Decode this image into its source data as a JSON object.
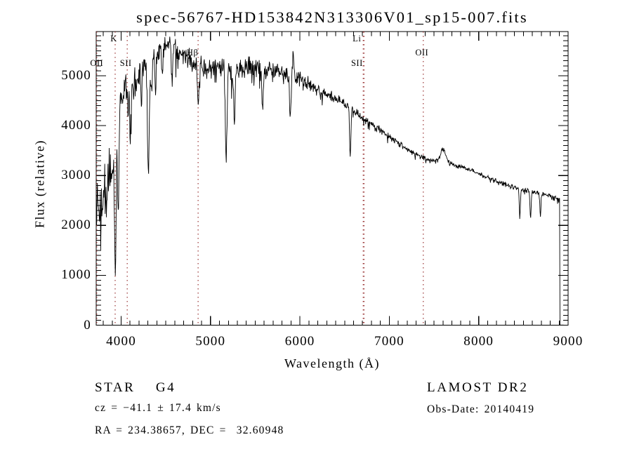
{
  "title": "spec-56767-HD153842N313306V01_sp15-007.fits",
  "annotations": {
    "class_line": "STAR    G4",
    "survey": "LAMOST DR2",
    "cz_line": "cz = −41.1 ± 17.4 km/s",
    "obs_date_line": "Obs-Date: 20140419",
    "radec_line": "RA = 234.38657, DEC =  32.60948"
  },
  "chart_data": {
    "type": "line",
    "title": "spec-56767-HD153842N313306V01_sp15-007.fits",
    "xlabel": "Wavelength (Å)",
    "ylabel": "Flux (relative)",
    "xlim": [
      3721,
      9000
    ],
    "ylim": [
      0,
      5886
    ],
    "x_ticks": [
      4000,
      5000,
      6000,
      7000,
      8000,
      9000
    ],
    "y_ticks": [
      0,
      1000,
      2000,
      3000,
      4000,
      5000
    ],
    "x_minor_step": 100,
    "y_minor_step": 100,
    "grid": false,
    "legend": false,
    "colors": {
      "spectrum": "#000000",
      "line_marker": "#993333",
      "axis": "#000000",
      "background": "#ffffff"
    },
    "spectral_lines": [
      {
        "label": "OII",
        "wavelength": 3727,
        "row": "low",
        "dx": 0
      },
      {
        "label": "K",
        "wavelength": 3933,
        "row": "high",
        "dx": -2
      },
      {
        "label": "SII",
        "wavelength": 4068,
        "row": "low",
        "dx": -2
      },
      {
        "label": "Hβ",
        "wavelength": 4861,
        "row": "mid",
        "dx": -8
      },
      {
        "label": "Li",
        "wavelength": 6708,
        "row": "high",
        "dx": -9
      },
      {
        "label": "SII",
        "wavelength": 6717,
        "row": "low",
        "dx": -10
      },
      {
        "label": "OII",
        "wavelength": 7380,
        "row": "mid",
        "dx": -2
      }
    ],
    "noise_seed": 73,
    "cutoff_wavelength": 8905,
    "continuum": [
      [
        3721,
        2450
      ],
      [
        3760,
        2350
      ],
      [
        3800,
        2500
      ],
      [
        3850,
        2750
      ],
      [
        3900,
        3200
      ],
      [
        3935,
        3600
      ],
      [
        3980,
        4350
      ],
      [
        4030,
        4750
      ],
      [
        4090,
        4750
      ],
      [
        4150,
        4850
      ],
      [
        4250,
        5150
      ],
      [
        4350,
        5450
      ],
      [
        4450,
        5600
      ],
      [
        4550,
        5620
      ],
      [
        4650,
        5470
      ],
      [
        4750,
        5330
      ],
      [
        4850,
        5280
      ],
      [
        4950,
        5180
      ],
      [
        5050,
        5160
      ],
      [
        5150,
        5230
      ],
      [
        5250,
        5080
      ],
      [
        5350,
        5120
      ],
      [
        5450,
        5170
      ],
      [
        5550,
        5120
      ],
      [
        5650,
        5120
      ],
      [
        5750,
        5070
      ],
      [
        5850,
        5020
      ],
      [
        5950,
        5020
      ],
      [
        6050,
        4900
      ],
      [
        6150,
        4780
      ],
      [
        6250,
        4680
      ],
      [
        6350,
        4580
      ],
      [
        6450,
        4480
      ],
      [
        6550,
        4400
      ],
      [
        6650,
        4230
      ],
      [
        6750,
        4100
      ],
      [
        6850,
        3980
      ],
      [
        6950,
        3850
      ],
      [
        7050,
        3720
      ],
      [
        7150,
        3600
      ],
      [
        7250,
        3470
      ],
      [
        7350,
        3380
      ],
      [
        7450,
        3310
      ],
      [
        7550,
        3280
      ],
      [
        7650,
        3260
      ],
      [
        7750,
        3210
      ],
      [
        7850,
        3150
      ],
      [
        7950,
        3070
      ],
      [
        8050,
        3000
      ],
      [
        8150,
        2920
      ],
      [
        8250,
        2850
      ],
      [
        8350,
        2790
      ],
      [
        8450,
        2730
      ],
      [
        8550,
        2690
      ],
      [
        8650,
        2650
      ],
      [
        8750,
        2610
      ],
      [
        8850,
        2560
      ],
      [
        8905,
        2530
      ]
    ],
    "noise_profile": [
      [
        3721,
        780
      ],
      [
        3860,
        720
      ],
      [
        3940,
        520
      ],
      [
        3990,
        380
      ],
      [
        4200,
        360
      ],
      [
        4450,
        280
      ],
      [
        4700,
        300
      ],
      [
        5000,
        280
      ],
      [
        5400,
        260
      ],
      [
        5800,
        230
      ],
      [
        6000,
        190
      ],
      [
        6200,
        150
      ],
      [
        6450,
        130
      ],
      [
        6700,
        100
      ],
      [
        6900,
        90
      ],
      [
        7200,
        75
      ],
      [
        7500,
        65
      ],
      [
        7800,
        62
      ],
      [
        8100,
        58
      ],
      [
        8500,
        55
      ],
      [
        8905,
        50
      ]
    ],
    "features": [
      {
        "center": 3935,
        "width": 9,
        "depth": 2450
      },
      {
        "center": 3968,
        "width": 8,
        "depth": 1800
      },
      {
        "center": 4102,
        "width": 8,
        "depth": 850
      },
      {
        "center": 4227,
        "width": 7,
        "depth": 650
      },
      {
        "center": 4305,
        "width": 11,
        "depth": 2150
      },
      {
        "center": 4340,
        "width": 7,
        "depth": 800
      },
      {
        "center": 4385,
        "width": 7,
        "depth": 850
      },
      {
        "center": 4460,
        "width": 7,
        "depth": 700
      },
      {
        "center": 4570,
        "width": 7,
        "depth": 650
      },
      {
        "center": 4862,
        "width": 8,
        "depth": 950
      },
      {
        "center": 5175,
        "width": 10,
        "depth": 1750
      },
      {
        "center": 5268,
        "width": 8,
        "depth": 850
      },
      {
        "center": 5585,
        "width": 7,
        "depth": 700
      },
      {
        "center": 5892,
        "width": 8,
        "depth": 780
      },
      {
        "center": 5925,
        "width": 6,
        "depth": -520
      },
      {
        "center": 6563,
        "width": 7,
        "depth": 1020
      },
      {
        "center": 7602,
        "width": 26,
        "depth": -270
      },
      {
        "center": 8460,
        "width": 6,
        "depth": 560
      },
      {
        "center": 8580,
        "width": 6,
        "depth": 540
      },
      {
        "center": 8690,
        "width": 6,
        "depth": 430
      }
    ]
  }
}
